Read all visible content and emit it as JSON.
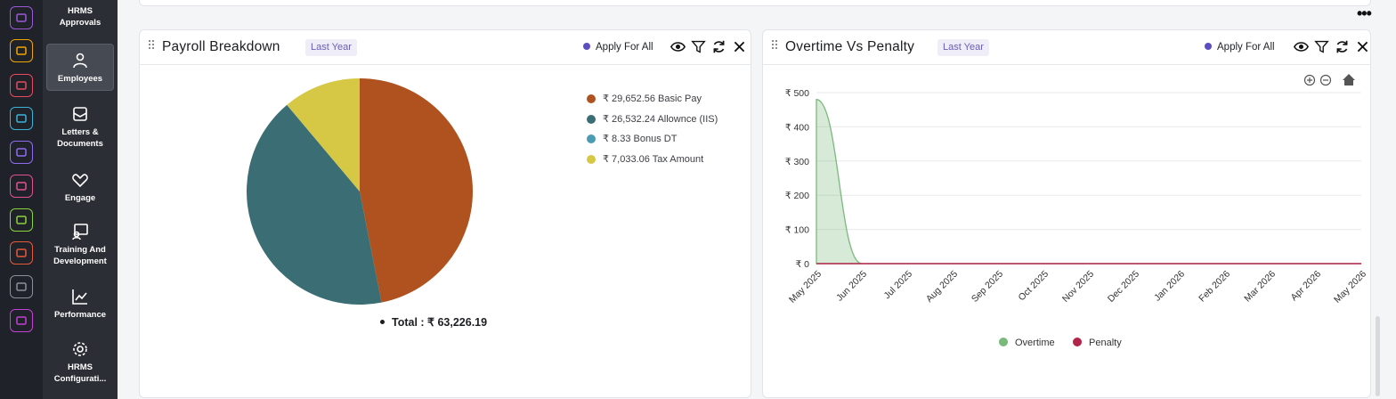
{
  "rail": {
    "icons": [
      {
        "name": "briefcase-icon",
        "color": "#9b59d8"
      },
      {
        "name": "hands-icon",
        "color": "#f0a500"
      },
      {
        "name": "target-icon",
        "color": "#e84a5f"
      },
      {
        "name": "archive-icon",
        "color": "#3bb3d8"
      },
      {
        "name": "plane-icon",
        "color": "#8e6cf0"
      },
      {
        "name": "monitor-icon",
        "color": "#e44f8f"
      },
      {
        "name": "sheet-icon",
        "color": "#8bd23c"
      },
      {
        "name": "user-badge-icon",
        "color": "#e8583c"
      },
      {
        "name": "home-icon",
        "color": "#8a8f99"
      },
      {
        "name": "gear-icon",
        "color": "#c43fd6"
      }
    ]
  },
  "nav": {
    "items": [
      {
        "label": "HRMS Approvals"
      },
      {
        "label": "Employees"
      },
      {
        "label": "Letters & Documents"
      },
      {
        "label": "Engage"
      },
      {
        "label": "Training And Development"
      },
      {
        "label": "Performance"
      },
      {
        "label": "HRMS Configurati..."
      }
    ]
  },
  "payroll": {
    "title": "Payroll Breakdown",
    "badge": "Last Year",
    "apply": "Apply For All",
    "total": "Total : ₹ 63,226.19"
  },
  "overtime": {
    "title": "Overtime Vs Penalty",
    "badge": "Last Year",
    "apply": "Apply For All"
  },
  "chart_data": [
    {
      "type": "pie",
      "categories": [
        "₹ 29,652.56 Basic Pay",
        "₹ 26,532.24 Allownce (IIS)",
        "₹ 8.33 Bonus DT",
        "₹ 7,033.06 Tax Amount"
      ],
      "values": [
        29652.56,
        26532.24,
        8.33,
        7033.06
      ],
      "colors": [
        "#b0521f",
        "#3a6e74",
        "#4a9bb3",
        "#d6c845"
      ],
      "legend": "right"
    },
    {
      "type": "area",
      "categories": [
        "May 2025",
        "Jun 2025",
        "Jul 2025",
        "Aug 2025",
        "Sep 2025",
        "Oct 2025",
        "Nov 2025",
        "Dec 2025",
        "Jan 2026",
        "Feb 2026",
        "Mar 2026",
        "Apr 2026",
        "May 2026"
      ],
      "yticks": [
        "₹ 0",
        "₹ 100",
        "₹ 200",
        "₹ 300",
        "₹ 400",
        "₹ 500"
      ],
      "ylim": [
        0,
        500
      ],
      "series": [
        {
          "name": "Overtime",
          "values": [
            480,
            0,
            0,
            0,
            0,
            0,
            0,
            0,
            0,
            0,
            0,
            0,
            0
          ],
          "color": "#79b97b"
        },
        {
          "name": "Penalty",
          "values": [
            0,
            0,
            0,
            0,
            0,
            0,
            0,
            0,
            0,
            0,
            0,
            0,
            0
          ],
          "color": "#b3244a"
        }
      ],
      "legend": "bottom",
      "grid": true
    }
  ]
}
